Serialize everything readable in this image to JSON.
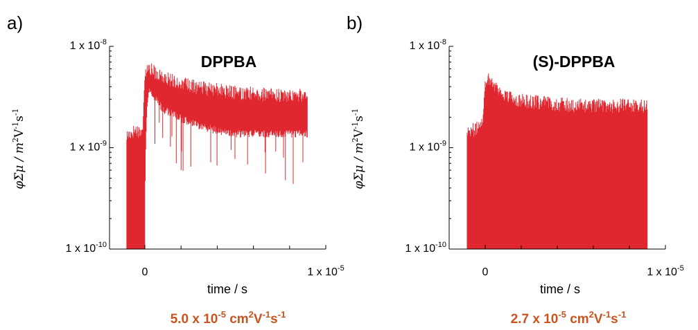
{
  "accent_color": "#c8541f",
  "trace_color": "#e0272f",
  "chart_data": [
    {
      "type": "line",
      "panel_label": "a)",
      "title": "DPPBA",
      "xlabel": "time / s",
      "ylabel": {
        "main": "φΣμ / m",
        "p1": "2",
        "m1": "V",
        "p2": "-1",
        "m2": "s",
        "p3": "-1"
      },
      "xlim": [
        -1.5e-06,
        1e-05
      ],
      "ylim": [
        1e-10,
        1e-08
      ],
      "y_scale": "log",
      "x_ticks": [
        {
          "value": 0,
          "label": "0"
        },
        {
          "value": 1e-05,
          "base": "1 x 10",
          "exp": "-5"
        }
      ],
      "y_ticks": [
        {
          "value": 1e-08,
          "base": "1 x 10",
          "exp": "-8"
        },
        {
          "value": 1e-09,
          "base": "1 x 10",
          "exp": "-9"
        },
        {
          "value": 1e-10,
          "base": "1 x 10",
          "exp": "-10"
        }
      ],
      "series": [
        {
          "x": [
            -1e-06,
            -5e-07,
            -1e-07,
            0,
            2e-07,
            1e-06,
            2e-06,
            3e-06,
            4e-06,
            5e-06,
            6e-06,
            7e-06,
            8e-06,
            9e-06
          ],
          "y_upper": [
            1.3e-09,
            1.5e-09,
            1.4e-09,
            5.5e-09,
            6e-09,
            5e-09,
            4.3e-09,
            3.9e-09,
            3.7e-09,
            3.5e-09,
            3.4e-09,
            3.3e-09,
            3.3e-09,
            3.3e-09
          ],
          "y_lower": [
            1e-10,
            1e-10,
            1e-10,
            1e-10,
            4e-09,
            2.6e-09,
            2.1e-09,
            1.8e-09,
            1.6e-09,
            1.5e-09,
            1.5e-09,
            1.5e-09,
            1.5e-09,
            1.5e-09
          ]
        }
      ],
      "mobility": {
        "prefix": "5.0 x 10",
        "exp": "-5",
        "unit": " cm",
        "u1": "2",
        "v": "V",
        "u2": "-1",
        "s": "s",
        "u3": "-1"
      }
    },
    {
      "type": "line",
      "panel_label": "b)",
      "title": "(S)-DPPBA",
      "xlabel": "time / s",
      "ylabel": {
        "main": "φΣμ / m",
        "p1": "2",
        "m1": "V",
        "p2": "-1",
        "m2": "s",
        "p3": "-1"
      },
      "xlim": [
        -1.5e-06,
        1e-05
      ],
      "ylim": [
        1e-10,
        1e-08
      ],
      "y_scale": "log",
      "x_ticks": [
        {
          "value": 0,
          "label": "0"
        },
        {
          "value": 1e-05,
          "base": "1 x 10",
          "exp": "-5"
        }
      ],
      "y_ticks": [
        {
          "value": 1e-08,
          "base": "1 x 10",
          "exp": "-8"
        },
        {
          "value": 1e-09,
          "base": "1 x 10",
          "exp": "-9"
        },
        {
          "value": 1e-10,
          "base": "1 x 10",
          "exp": "-10"
        }
      ],
      "series": [
        {
          "x": [
            -1e-06,
            -5e-07,
            -1e-07,
            0,
            2e-07,
            1e-06,
            2e-06,
            3e-06,
            4e-06,
            5e-06,
            6e-06,
            7e-06,
            8e-06,
            9e-06
          ],
          "y_upper": [
            1.5e-09,
            1.5e-09,
            2e-09,
            4.5e-09,
            4.8e-09,
            3.3e-09,
            2.9e-09,
            2.8e-09,
            2.7e-09,
            2.6e-09,
            2.6e-09,
            2.6e-09,
            2.6e-09,
            2.6e-09
          ],
          "y_lower": [
            1e-10,
            1e-10,
            1e-10,
            1e-10,
            1e-10,
            1e-10,
            1e-10,
            1e-10,
            1e-10,
            1e-10,
            1e-10,
            1e-10,
            1e-10,
            1e-10
          ]
        }
      ],
      "mobility": {
        "prefix": "2.7 x 10",
        "exp": "-5",
        "unit": " cm",
        "u1": "2",
        "v": "V",
        "u2": "-1",
        "s": "s",
        "u3": "-1"
      }
    }
  ]
}
